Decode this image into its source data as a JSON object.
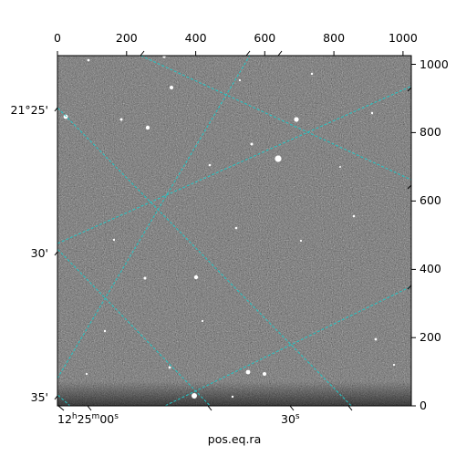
{
  "figure": {
    "xlabel": "pos.eq.ra",
    "top_ticks": [
      "0",
      "200",
      "400",
      "600",
      "800",
      "1000"
    ],
    "right_ticks": [
      "1000",
      "800",
      "600",
      "400",
      "200",
      "0"
    ],
    "dec_ticks": [
      "21°25'",
      "30'",
      "35'"
    ],
    "ra_ticks": [
      {
        "h": "12",
        "m": "25",
        "s": "00",
        "hs": "h",
        "ms": "m",
        "ss": "s"
      },
      {
        "s": "30",
        "ss": "s"
      }
    ]
  },
  "colors": {
    "grid": "#1fc7c7",
    "frame": "#000000"
  }
}
